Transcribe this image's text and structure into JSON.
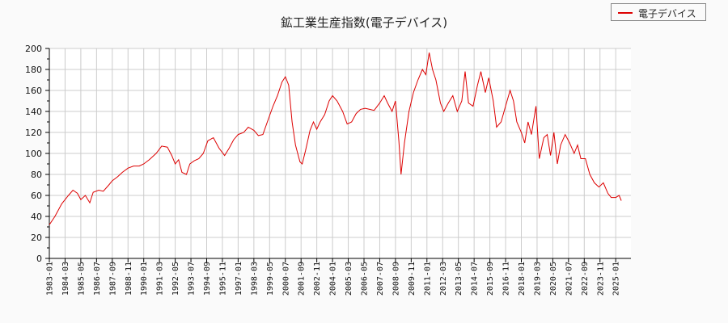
{
  "title": "鉱工業生産指数(電子デバイス)",
  "legend": {
    "label": "電子デバイス",
    "color": "#dd0000"
  },
  "chart_data": {
    "type": "line",
    "title": "鉱工業生産指数(電子デバイス)",
    "xlabel": "",
    "ylabel": "",
    "ylim": [
      0,
      200
    ],
    "yticks": [
      0,
      20,
      40,
      60,
      80,
      100,
      120,
      140,
      160,
      180,
      200
    ],
    "xticks": [
      "1983-01",
      "1984-03",
      "1985-05",
      "1986-07",
      "1987-09",
      "1988-11",
      "1990-01",
      "1991-03",
      "1992-05",
      "1993-07",
      "1994-09",
      "1995-11",
      "1997-01",
      "1998-03",
      "1999-05",
      "2000-07",
      "2001-09",
      "2002-11",
      "2004-01",
      "2005-03",
      "2006-05",
      "2007-07",
      "2008-09",
      "2009-11",
      "2011-01",
      "2012-03",
      "2013-05",
      "2014-07",
      "2015-09",
      "2016-11",
      "2018-01",
      "2019-03",
      "2020-05",
      "2021-07",
      "2022-09",
      "2023-11",
      "2025-01"
    ],
    "grid": true,
    "legend_position": "top-right",
    "series": [
      {
        "name": "電子デバイス",
        "color": "#dd0000",
        "points": [
          [
            "1983-01",
            32
          ],
          [
            "1983-06",
            40
          ],
          [
            "1983-12",
            52
          ],
          [
            "1984-06",
            60
          ],
          [
            "1984-10",
            65
          ],
          [
            "1985-02",
            62
          ],
          [
            "1985-05",
            56
          ],
          [
            "1985-09",
            60
          ],
          [
            "1986-01",
            53
          ],
          [
            "1986-04",
            63
          ],
          [
            "1986-09",
            65
          ],
          [
            "1987-01",
            64
          ],
          [
            "1987-06",
            70
          ],
          [
            "1987-09",
            74
          ],
          [
            "1988-02",
            78
          ],
          [
            "1988-06",
            82
          ],
          [
            "1988-11",
            86
          ],
          [
            "1989-04",
            88
          ],
          [
            "1989-09",
            88
          ],
          [
            "1990-01",
            90
          ],
          [
            "1990-06",
            94
          ],
          [
            "1990-12",
            100
          ],
          [
            "1991-05",
            107
          ],
          [
            "1991-10",
            106
          ],
          [
            "1992-02",
            98
          ],
          [
            "1992-05",
            90
          ],
          [
            "1992-08",
            94
          ],
          [
            "1992-11",
            82
          ],
          [
            "1993-03",
            80
          ],
          [
            "1993-06",
            90
          ],
          [
            "1993-10",
            93
          ],
          [
            "1994-02",
            95
          ],
          [
            "1994-06",
            100
          ],
          [
            "1994-10",
            112
          ],
          [
            "1995-03",
            115
          ],
          [
            "1995-08",
            105
          ],
          [
            "1996-01",
            98
          ],
          [
            "1996-05",
            105
          ],
          [
            "1996-09",
            113
          ],
          [
            "1997-01",
            118
          ],
          [
            "1997-06",
            120
          ],
          [
            "1997-10",
            125
          ],
          [
            "1998-03",
            122
          ],
          [
            "1998-07",
            117
          ],
          [
            "1998-11",
            118
          ],
          [
            "1999-03",
            130
          ],
          [
            "1999-08",
            145
          ],
          [
            "1999-12",
            155
          ],
          [
            "2000-04",
            168
          ],
          [
            "2000-07",
            173
          ],
          [
            "2000-10",
            165
          ],
          [
            "2001-01",
            130
          ],
          [
            "2001-04",
            108
          ],
          [
            "2001-08",
            92
          ],
          [
            "2001-10",
            90
          ],
          [
            "2002-01",
            103
          ],
          [
            "2002-05",
            122
          ],
          [
            "2002-08",
            130
          ],
          [
            "2002-11",
            123
          ],
          [
            "2003-02",
            130
          ],
          [
            "2003-06",
            137
          ],
          [
            "2003-10",
            150
          ],
          [
            "2004-01",
            155
          ],
          [
            "2004-05",
            150
          ],
          [
            "2004-10",
            140
          ],
          [
            "2005-02",
            128
          ],
          [
            "2005-06",
            130
          ],
          [
            "2005-10",
            138
          ],
          [
            "2006-02",
            142
          ],
          [
            "2006-06",
            143
          ],
          [
            "2006-10",
            142
          ],
          [
            "2007-02",
            141
          ],
          [
            "2007-07",
            148
          ],
          [
            "2007-11",
            155
          ],
          [
            "2008-02",
            148
          ],
          [
            "2008-06",
            140
          ],
          [
            "2008-09",
            150
          ],
          [
            "2008-12",
            112
          ],
          [
            "2009-02",
            80
          ],
          [
            "2009-05",
            110
          ],
          [
            "2009-09",
            140
          ],
          [
            "2010-01",
            158
          ],
          [
            "2010-05",
            170
          ],
          [
            "2010-09",
            180
          ],
          [
            "2010-12",
            175
          ],
          [
            "2011-03",
            196
          ],
          [
            "2011-06",
            180
          ],
          [
            "2011-09",
            170
          ],
          [
            "2012-01",
            148
          ],
          [
            "2012-04",
            140
          ],
          [
            "2012-08",
            148
          ],
          [
            "2012-12",
            155
          ],
          [
            "2013-04",
            140
          ],
          [
            "2013-08",
            150
          ],
          [
            "2013-11",
            178
          ],
          [
            "2014-02",
            148
          ],
          [
            "2014-06",
            145
          ],
          [
            "2014-10",
            165
          ],
          [
            "2015-01",
            178
          ],
          [
            "2015-05",
            158
          ],
          [
            "2015-08",
            172
          ],
          [
            "2015-12",
            150
          ],
          [
            "2016-03",
            125
          ],
          [
            "2016-07",
            130
          ],
          [
            "2016-11",
            145
          ],
          [
            "2017-03",
            160
          ],
          [
            "2017-06",
            150
          ],
          [
            "2017-09",
            130
          ],
          [
            "2018-01",
            120
          ],
          [
            "2018-04",
            110
          ],
          [
            "2018-07",
            130
          ],
          [
            "2018-10",
            118
          ],
          [
            "2019-02",
            145
          ],
          [
            "2019-05",
            95
          ],
          [
            "2019-09",
            115
          ],
          [
            "2019-12",
            118
          ],
          [
            "2020-03",
            98
          ],
          [
            "2020-06",
            120
          ],
          [
            "2020-09",
            90
          ],
          [
            "2020-12",
            108
          ],
          [
            "2021-04",
            118
          ],
          [
            "2021-08",
            110
          ],
          [
            "2021-12",
            100
          ],
          [
            "2022-03",
            108
          ],
          [
            "2022-06",
            95
          ],
          [
            "2022-10",
            95
          ],
          [
            "2023-02",
            80
          ],
          [
            "2023-06",
            72
          ],
          [
            "2023-10",
            68
          ],
          [
            "2024-02",
            72
          ],
          [
            "2024-06",
            62
          ],
          [
            "2024-09",
            58
          ],
          [
            "2025-01",
            58
          ],
          [
            "2025-04",
            60
          ],
          [
            "2025-06",
            55
          ]
        ]
      }
    ]
  }
}
